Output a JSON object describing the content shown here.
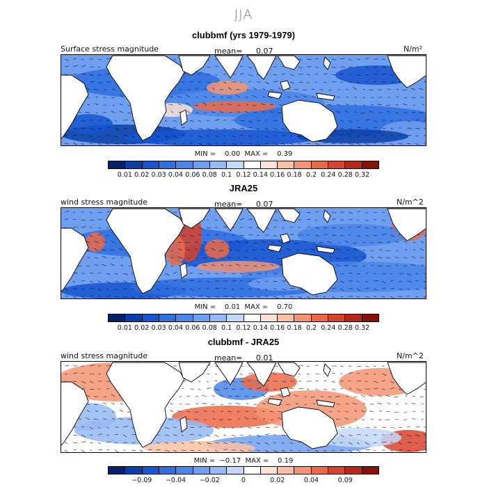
{
  "figure_title": "JJA",
  "colors": {
    "land": "#ffffff",
    "coast": "#000000"
  },
  "chart_data": [
    {
      "type": "heatmap",
      "title": "clubbmf (yrs 1979-1979)",
      "field_label": "Surface stress magnitude",
      "mean_label": "mean=",
      "mean_value": "0.07",
      "units": "N/m²",
      "min_max": "MIN =    0.00  MAX =    0.39",
      "min": 0.0,
      "max": 0.39,
      "levels": [
        "0.01",
        "0.02",
        "0.03",
        "0.04",
        "0.06",
        "0.08",
        "0.1",
        "0.12",
        "0.14",
        "0.16",
        "0.18",
        "0.2",
        "0.24",
        "0.28",
        "0.32"
      ],
      "palette": [
        "#08216b",
        "#0a3fa8",
        "#1655d1",
        "#2f6fe0",
        "#4a86ea",
        "#6e9ff0",
        "#95baf5",
        "#c4d8fa",
        "#ffffff",
        "#fde1d3",
        "#fbbfa3",
        "#f59472",
        "#ea6a48",
        "#d8432b",
        "#b7261a",
        "#8a0f0a"
      ]
    },
    {
      "type": "heatmap",
      "title": "JRA25",
      "field_label": "wind stress magnitude",
      "mean_label": "mean=",
      "mean_value": "0.07",
      "units": "N/m^2",
      "min_max": "MIN =    0.01  MAX =    0.70",
      "min": 0.01,
      "max": 0.7,
      "levels": [
        "0.01",
        "0.02",
        "0.03",
        "0.04",
        "0.06",
        "0.08",
        "0.1",
        "0.12",
        "0.14",
        "0.16",
        "0.18",
        "0.2",
        "0.24",
        "0.28",
        "0.32"
      ],
      "palette": [
        "#08216b",
        "#0a3fa8",
        "#1655d1",
        "#2f6fe0",
        "#4a86ea",
        "#6e9ff0",
        "#95baf5",
        "#c4d8fa",
        "#ffffff",
        "#fde1d3",
        "#fbbfa3",
        "#f59472",
        "#ea6a48",
        "#d8432b",
        "#b7261a",
        "#8a0f0a"
      ]
    },
    {
      "type": "heatmap",
      "title": "clubbmf - JRA25",
      "field_label": "wind stress magnitude",
      "mean_label": "mean=",
      "mean_value": "0.01",
      "units": "N/m^2",
      "min_max": "MIN =  −0.17  MAX =    0.19",
      "min": -0.17,
      "max": 0.19,
      "levels": [
        "−0.09",
        "−0.04",
        "−0.02",
        "0",
        "0.02",
        "0.04",
        "0.09"
      ],
      "level_positions": [
        2,
        4,
        6,
        8,
        10,
        12,
        14
      ],
      "palette": [
        "#08216b",
        "#0a3fa8",
        "#1655d1",
        "#2f6fe0",
        "#4a86ea",
        "#6e9ff0",
        "#95baf5",
        "#c4d8fa",
        "#ffffff",
        "#fde1d3",
        "#fbbfa3",
        "#f59472",
        "#ea6a48",
        "#d8432b",
        "#b7261a",
        "#8a0f0a"
      ]
    }
  ]
}
